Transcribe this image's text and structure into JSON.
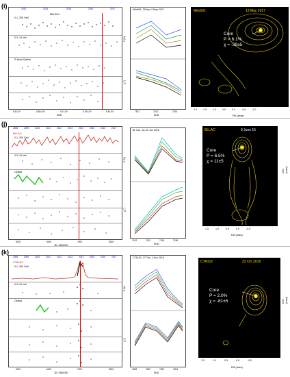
{
  "panels": [
    {
      "label": "(i)",
      "source": "Mkn501",
      "lc": {
        "years": [
          "2013",
          "2014",
          "2015",
          "2016",
          "2017"
        ],
        "bands": [
          "0.1–300 GeV",
          "0.3–10 keV",
          "R-band Optical"
        ],
        "xticks": [
          "5.6×10⁴",
          "5.65×10⁴",
          "5.7×10⁴",
          "5.75×10⁴",
          "5.8×10⁴"
        ],
        "xlabel": "MJD"
      },
      "pol": {
        "title": "Mkn501, 28 Apr–2 May 2017",
        "xticks": [
          "7872",
          "7874",
          "7876"
        ],
        "xlabel": "MJD",
        "ylabels": [
          "P (%)",
          "χ (°)"
        ]
      },
      "vlbi": {
        "title": "Mkn501",
        "date": "13 May 2017",
        "core_label": "Core",
        "p_text": "P = 6.1%",
        "chi_text": "χ = -39±5",
        "ra_label": "RA (mas)",
        "dec_label": "Dec (mas)",
        "ra_ticks": [
          "2.0",
          "1.5",
          "1.0",
          "0.5",
          "0.0",
          "-0.5",
          "-1.0"
        ],
        "dec_ticks": [
          "0.5",
          "0.0",
          "-0.5",
          "-1.0",
          "-1.5",
          "-2.0"
        ]
      }
    },
    {
      "label": "(j)",
      "source": "BLLAC",
      "lc": {
        "years": [
          "2008",
          "2009",
          "2010",
          "2011",
          "2012",
          "2013",
          "2014",
          "2015",
          "2016",
          "2017"
        ],
        "bands": [
          "0.1–300 GeV",
          "0.3–10 keV",
          "Optical",
          "R mag"
        ],
        "xticks": [
          "5000",
          "6000",
          "7000",
          "8000"
        ],
        "xlabel": "JD−2450000"
      },
      "pol": {
        "title": "BL Lac, 18–22 Jun 2015",
        "xticks": [
          "7192",
          "7193",
          "7194",
          "7195"
        ],
        "xlabel": "MJD",
        "ylabels": [
          "P (%)",
          "χ (°)"
        ]
      },
      "vlbi": {
        "title": "BLLAC",
        "date": "9 June 15",
        "core_label": "Core",
        "p_text": "P = 6.5%",
        "chi_text": "χ = 11±5",
        "ra_label": "RA (mas)",
        "dec_label": "Dec (mas)",
        "ra_ticks": [
          "1.5",
          "1.0",
          "0.5",
          "0.0",
          "-0.5"
        ],
        "dec_ticks": [
          "0",
          "-1",
          "-2",
          "-3"
        ]
      }
    },
    {
      "label": "(k)",
      "source": "CTA102",
      "lc": {
        "years": [
          "2008",
          "2009",
          "2010",
          "2011",
          "2012",
          "2013",
          "2014",
          "2015",
          "2016",
          "2017"
        ],
        "bands": [
          "0.1–300 GeV",
          "0.3–10 keV",
          "Optical",
          "R mag"
        ],
        "xticks": [
          "5000",
          "6000",
          "7000",
          "8000"
        ],
        "xlabel": "JD−2450000"
      },
      "pol": {
        "title": "CTA102, 27 Oct–1 Nov 2016",
        "xticks": [
          "7688",
          "7690",
          "7692",
          "7694"
        ],
        "xlabel": "MJD",
        "ylabels": [
          "P (%)",
          "χ (°)"
        ]
      },
      "vlbi": {
        "title": "CTA102",
        "date": "23 Oct 2016",
        "core_label": "Core",
        "p_text": "P = 2.0%",
        "chi_text": "χ = -81±5",
        "ra_label": "RA (mas)",
        "dec_label": "Dec (mas)",
        "ra_ticks": [
          "1.5",
          "1.0",
          "0.5",
          "0.0",
          "-0.5"
        ],
        "dec_ticks": [
          "0",
          "-1",
          "-2",
          "-3"
        ]
      }
    }
  ]
}
